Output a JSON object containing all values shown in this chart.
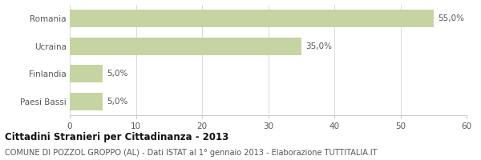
{
  "categories": [
    "Paesi Bassi",
    "Finlandia",
    "Ucraina",
    "Romania"
  ],
  "values": [
    5.0,
    5.0,
    35.0,
    55.0
  ],
  "labels": [
    "5,0%",
    "5,0%",
    "35,0%",
    "55,0%"
  ],
  "bar_color": "#c5d4a0",
  "xlim": [
    0,
    60
  ],
  "xticks": [
    0,
    10,
    20,
    30,
    40,
    50,
    60
  ],
  "title": "Cittadini Stranieri per Cittadinanza - 2013",
  "subtitle": "COMUNE DI POZZOL GROPPO (AL) - Dati ISTAT al 1° gennaio 2013 - Elaborazione TUTTITALIA.IT",
  "title_fontsize": 8.5,
  "subtitle_fontsize": 7.0,
  "label_fontsize": 7.5,
  "tick_fontsize": 7.5,
  "bg_color": "#ffffff",
  "grid_color": "#cccccc",
  "text_color": "#555555",
  "title_color": "#111111"
}
